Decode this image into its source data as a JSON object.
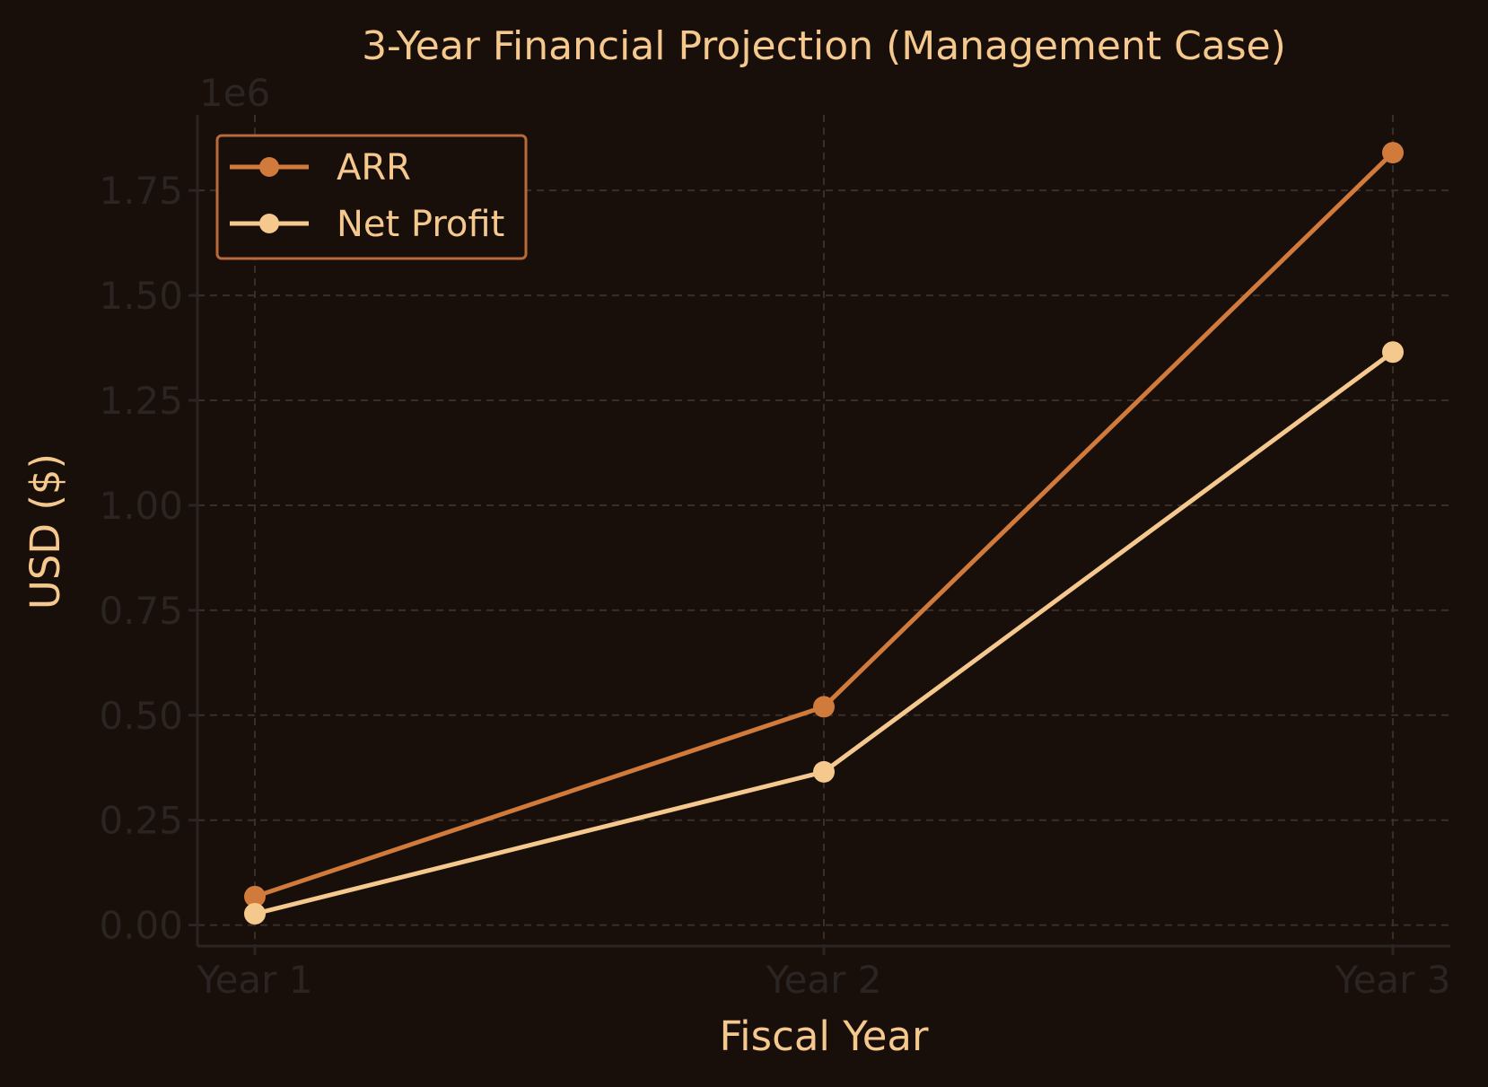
{
  "chart_data": {
    "type": "line",
    "title": "3-Year Financial Projection (Management Case)",
    "xlabel": "Fiscal Year",
    "ylabel": "USD ($)",
    "y_offset_label": "1e6",
    "categories": [
      "Year 1",
      "Year 2",
      "Year 3"
    ],
    "ylim": [
      -0.05,
      1.93
    ],
    "yticks": [
      0.0,
      0.25,
      0.5,
      0.75,
      1.0,
      1.25,
      1.5,
      1.75
    ],
    "ytick_labels": [
      "0.00",
      "0.25",
      "0.50",
      "0.75",
      "1.00",
      "1.25",
      "1.50",
      "1.75"
    ],
    "y_scale_note": "values in millions (1e6)",
    "grid": true,
    "legend_position": "top-left",
    "series": [
      {
        "name": "ARR",
        "color": "#d07a3c",
        "values": [
          0.068,
          0.52,
          1.84
        ]
      },
      {
        "name": "Net Profit",
        "color": "#f5c98e",
        "values": [
          0.027,
          0.365,
          1.365
        ]
      }
    ],
    "colors": {
      "background": "#190f0a",
      "legend_border": "#b86a38",
      "text": "#f5c98e",
      "muted_text": "#2a2422"
    }
  }
}
